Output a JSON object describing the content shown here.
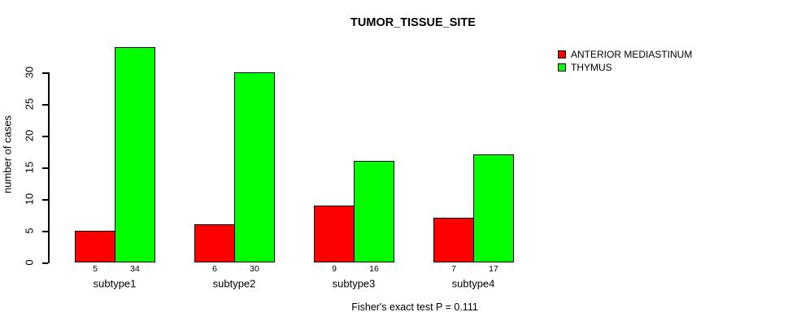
{
  "chart_data": {
    "type": "bar",
    "title": "TUMOR_TISSUE_SITE",
    "ylabel": "number of cases",
    "xlabel": "",
    "caption": "Fisher's exact test P = 0.111",
    "categories": [
      "subtype1",
      "subtype2",
      "subtype3",
      "subtype4"
    ],
    "series": [
      {
        "name": "ANTERIOR MEDIASTINUM",
        "color": "#ff0000",
        "values": [
          5,
          6,
          9,
          7
        ]
      },
      {
        "name": "THYMUS",
        "color": "#00ff00",
        "values": [
          34,
          30,
          16,
          17
        ]
      }
    ],
    "yticks": [
      0,
      5,
      10,
      15,
      20,
      25,
      30
    ],
    "ylim": [
      0,
      34
    ],
    "grid": false,
    "legend_position": "top-right",
    "bar_value_labels": true,
    "colors": {
      "background": "#ffffff",
      "axis": "#000000",
      "text": "#000000"
    }
  }
}
